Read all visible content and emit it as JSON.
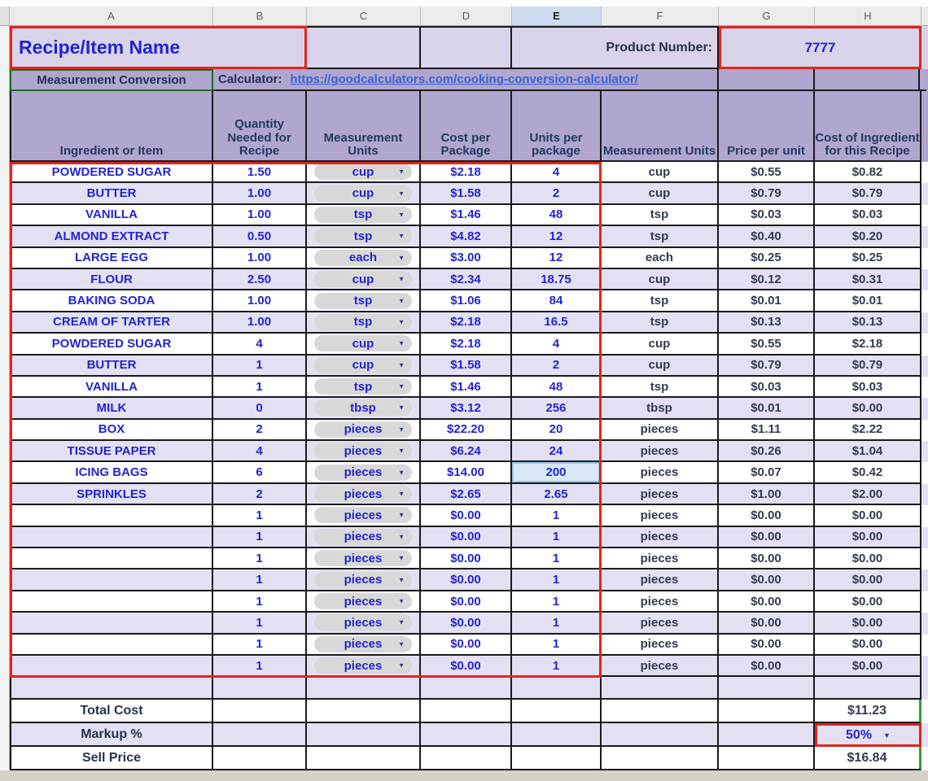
{
  "sheet": {
    "column_headers": {
      "letters": [
        "A",
        "B",
        "C",
        "D",
        "E",
        "F",
        "G",
        "H"
      ],
      "selected": "E"
    },
    "title_row": {
      "recipe_name_label": "Recipe/Item Name",
      "product_number_label": "Product Number:",
      "product_number_value": "7777"
    },
    "conversion_row": {
      "label": "Measurement Conversion",
      "calculator_label": "Calculator:",
      "link_url": "https://goodcalculators.com/cooking-conversion-calculator/"
    },
    "table": {
      "headers": [
        "Ingredient or Item",
        "Quantity Needed for Recipe",
        "Measurement Units",
        "Cost per Package",
        "Units per package",
        "Measurement Units",
        "Price per unit",
        "Cost of Ingredient for this Recipe"
      ],
      "rows": [
        {
          "name": "POWDERED SUGAR",
          "qty": "1.50",
          "unit": "cup",
          "pkg_cost": "$2.18",
          "pkg_units": "4",
          "unit_out": "cup",
          "unit_price": "$0.55",
          "recipe_cost": "$0.82"
        },
        {
          "name": "BUTTER",
          "qty": "1.00",
          "unit": "cup",
          "pkg_cost": "$1.58",
          "pkg_units": "2",
          "unit_out": "cup",
          "unit_price": "$0.79",
          "recipe_cost": "$0.79"
        },
        {
          "name": "VANILLA",
          "qty": "1.00",
          "unit": "tsp",
          "pkg_cost": "$1.46",
          "pkg_units": "48",
          "unit_out": "tsp",
          "unit_price": "$0.03",
          "recipe_cost": "$0.03"
        },
        {
          "name": "ALMOND EXTRACT",
          "qty": "0.50",
          "unit": "tsp",
          "pkg_cost": "$4.82",
          "pkg_units": "12",
          "unit_out": "tsp",
          "unit_price": "$0.40",
          "recipe_cost": "$0.20"
        },
        {
          "name": "LARGE EGG",
          "qty": "1.00",
          "unit": "each",
          "pkg_cost": "$3.00",
          "pkg_units": "12",
          "unit_out": "each",
          "unit_price": "$0.25",
          "recipe_cost": "$0.25"
        },
        {
          "name": "FLOUR",
          "qty": "2.50",
          "unit": "cup",
          "pkg_cost": "$2.34",
          "pkg_units": "18.75",
          "unit_out": "cup",
          "unit_price": "$0.12",
          "recipe_cost": "$0.31"
        },
        {
          "name": "BAKING SODA",
          "qty": "1.00",
          "unit": "tsp",
          "pkg_cost": "$1.06",
          "pkg_units": "84",
          "unit_out": "tsp",
          "unit_price": "$0.01",
          "recipe_cost": "$0.01"
        },
        {
          "name": "CREAM OF TARTER",
          "qty": "1.00",
          "unit": "tsp",
          "pkg_cost": "$2.18",
          "pkg_units": "16.5",
          "unit_out": "tsp",
          "unit_price": "$0.13",
          "recipe_cost": "$0.13"
        },
        {
          "name": "POWDERED SUGAR",
          "qty": "4",
          "unit": "cup",
          "pkg_cost": "$2.18",
          "pkg_units": "4",
          "unit_out": "cup",
          "unit_price": "$0.55",
          "recipe_cost": "$2.18"
        },
        {
          "name": "BUTTER",
          "qty": "1",
          "unit": "cup",
          "pkg_cost": "$1.58",
          "pkg_units": "2",
          "unit_out": "cup",
          "unit_price": "$0.79",
          "recipe_cost": "$0.79"
        },
        {
          "name": "VANILLA",
          "qty": "1",
          "unit": "tsp",
          "pkg_cost": "$1.46",
          "pkg_units": "48",
          "unit_out": "tsp",
          "unit_price": "$0.03",
          "recipe_cost": "$0.03"
        },
        {
          "name": "MILK",
          "qty": "0",
          "unit": "tbsp",
          "pkg_cost": "$3.12",
          "pkg_units": "256",
          "unit_out": "tbsp",
          "unit_price": "$0.01",
          "recipe_cost": "$0.00"
        },
        {
          "name": "BOX",
          "qty": "2",
          "unit": "pieces",
          "pkg_cost": "$22.20",
          "pkg_units": "20",
          "unit_out": "pieces",
          "unit_price": "$1.11",
          "recipe_cost": "$2.22"
        },
        {
          "name": "TISSUE PAPER",
          "qty": "4",
          "unit": "pieces",
          "pkg_cost": "$6.24",
          "pkg_units": "24",
          "unit_out": "pieces",
          "unit_price": "$0.26",
          "recipe_cost": "$1.04"
        },
        {
          "name": "ICING BAGS",
          "qty": "6",
          "unit": "pieces",
          "pkg_cost": "$14.00",
          "pkg_units": "200",
          "unit_out": "pieces",
          "unit_price": "$0.07",
          "recipe_cost": "$0.42",
          "selected": true
        },
        {
          "name": "SPRINKLES",
          "qty": "2",
          "unit": "pieces",
          "pkg_cost": "$2.65",
          "pkg_units": "2.65",
          "unit_out": "pieces",
          "unit_price": "$1.00",
          "recipe_cost": "$2.00"
        },
        {
          "name": "",
          "qty": "1",
          "unit": "pieces",
          "pkg_cost": "$0.00",
          "pkg_units": "1",
          "unit_out": "pieces",
          "unit_price": "$0.00",
          "recipe_cost": "$0.00"
        },
        {
          "name": "",
          "qty": "1",
          "unit": "pieces",
          "pkg_cost": "$0.00",
          "pkg_units": "1",
          "unit_out": "pieces",
          "unit_price": "$0.00",
          "recipe_cost": "$0.00"
        },
        {
          "name": "",
          "qty": "1",
          "unit": "pieces",
          "pkg_cost": "$0.00",
          "pkg_units": "1",
          "unit_out": "pieces",
          "unit_price": "$0.00",
          "recipe_cost": "$0.00"
        },
        {
          "name": "",
          "qty": "1",
          "unit": "pieces",
          "pkg_cost": "$0.00",
          "pkg_units": "1",
          "unit_out": "pieces",
          "unit_price": "$0.00",
          "recipe_cost": "$0.00"
        },
        {
          "name": "",
          "qty": "1",
          "unit": "pieces",
          "pkg_cost": "$0.00",
          "pkg_units": "1",
          "unit_out": "pieces",
          "unit_price": "$0.00",
          "recipe_cost": "$0.00"
        },
        {
          "name": "",
          "qty": "1",
          "unit": "pieces",
          "pkg_cost": "$0.00",
          "pkg_units": "1",
          "unit_out": "pieces",
          "unit_price": "$0.00",
          "recipe_cost": "$0.00"
        },
        {
          "name": "",
          "qty": "1",
          "unit": "pieces",
          "pkg_cost": "$0.00",
          "pkg_units": "1",
          "unit_out": "pieces",
          "unit_price": "$0.00",
          "recipe_cost": "$0.00"
        },
        {
          "name": "",
          "qty": "1",
          "unit": "pieces",
          "pkg_cost": "$0.00",
          "pkg_units": "1",
          "unit_out": "pieces",
          "unit_price": "$0.00",
          "recipe_cost": "$0.00"
        }
      ]
    },
    "totals": {
      "total_cost_label": "Total Cost",
      "total_cost_value": "$11.23",
      "markup_label": "Markup %",
      "markup_value": "50%",
      "sell_price_label": "Sell Price",
      "sell_price_value": "$16.84"
    },
    "colors": {
      "input_text": "#2323cf",
      "computed_text": "#333b4f",
      "highlight_border": "#e0251b",
      "totals_border": "#2f9e44",
      "header_fill": "#b1a6d0",
      "alt_row_fill": "#e3e0f3",
      "selected_cell_fill": "#d9e8f6"
    }
  }
}
